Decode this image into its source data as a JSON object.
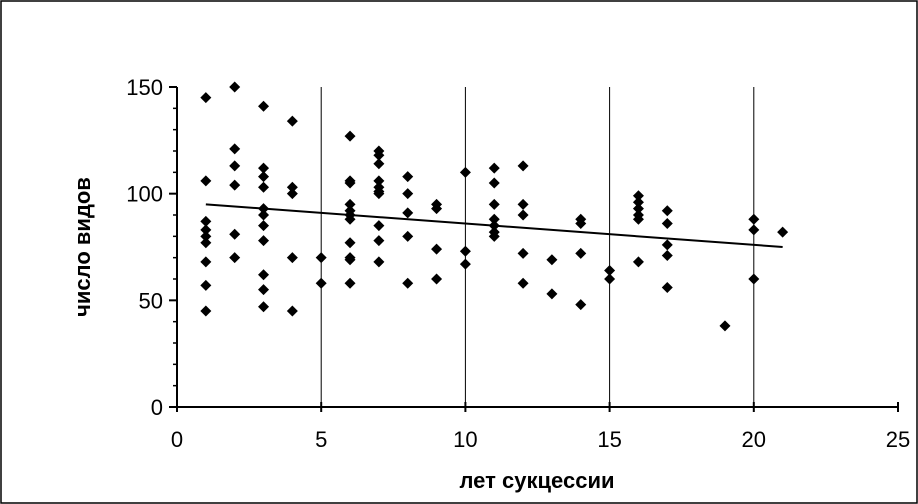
{
  "chart_data": {
    "type": "scatter",
    "xlabel": "лет сукцессии",
    "ylabel": "число видов",
    "x": [
      1,
      1,
      1,
      1,
      1,
      1,
      1,
      1,
      1,
      2,
      2,
      2,
      2,
      2,
      2,
      3,
      3,
      3,
      3,
      3,
      3,
      3,
      3,
      3,
      3,
      3,
      4,
      4,
      4,
      4,
      4,
      5,
      5,
      6,
      6,
      6,
      6,
      6,
      6,
      6,
      6,
      6,
      6,
      6,
      7,
      7,
      7,
      7,
      7,
      7,
      7,
      7,
      7,
      7,
      8,
      8,
      8,
      8,
      8,
      9,
      9,
      9,
      9,
      10,
      10,
      10,
      11,
      11,
      11,
      11,
      11,
      11,
      11,
      12,
      12,
      12,
      12,
      12,
      13,
      13,
      14,
      14,
      14,
      14,
      15,
      15,
      16,
      16,
      16,
      16,
      16,
      16,
      17,
      17,
      17,
      17,
      17,
      19,
      20,
      20,
      20,
      21
    ],
    "values": [
      145,
      106,
      87,
      83,
      80,
      77,
      68,
      57,
      45,
      150,
      121,
      113,
      104,
      81,
      70,
      141,
      112,
      108,
      103,
      93,
      90,
      85,
      78,
      62,
      55,
      47,
      134,
      103,
      100,
      70,
      45,
      70,
      58,
      127,
      106,
      105,
      95,
      92,
      90,
      88,
      77,
      70,
      69,
      58,
      120,
      118,
      114,
      106,
      103,
      101,
      100,
      85,
      78,
      68,
      108,
      100,
      91,
      80,
      58,
      95,
      93,
      74,
      60,
      110,
      73,
      67,
      112,
      105,
      95,
      88,
      85,
      82,
      80,
      113,
      95,
      90,
      72,
      58,
      69,
      53,
      88,
      86,
      72,
      48,
      64,
      60,
      99,
      96,
      93,
      90,
      88,
      68,
      92,
      86,
      76,
      71,
      56,
      38,
      88,
      83,
      60,
      82
    ],
    "color": "#000000",
    "trendline": {
      "x": [
        1,
        21
      ],
      "y": [
        95,
        75
      ]
    },
    "xlim": [
      0,
      25
    ],
    "ylim": [
      0,
      150
    ],
    "xticks": [
      0,
      5,
      10,
      15,
      20,
      25
    ],
    "yticks": [
      0,
      50,
      100,
      150
    ],
    "yminorticks": [
      10,
      20,
      30,
      40,
      60,
      70,
      80,
      90,
      110,
      120,
      130,
      140
    ],
    "grid": "x"
  }
}
